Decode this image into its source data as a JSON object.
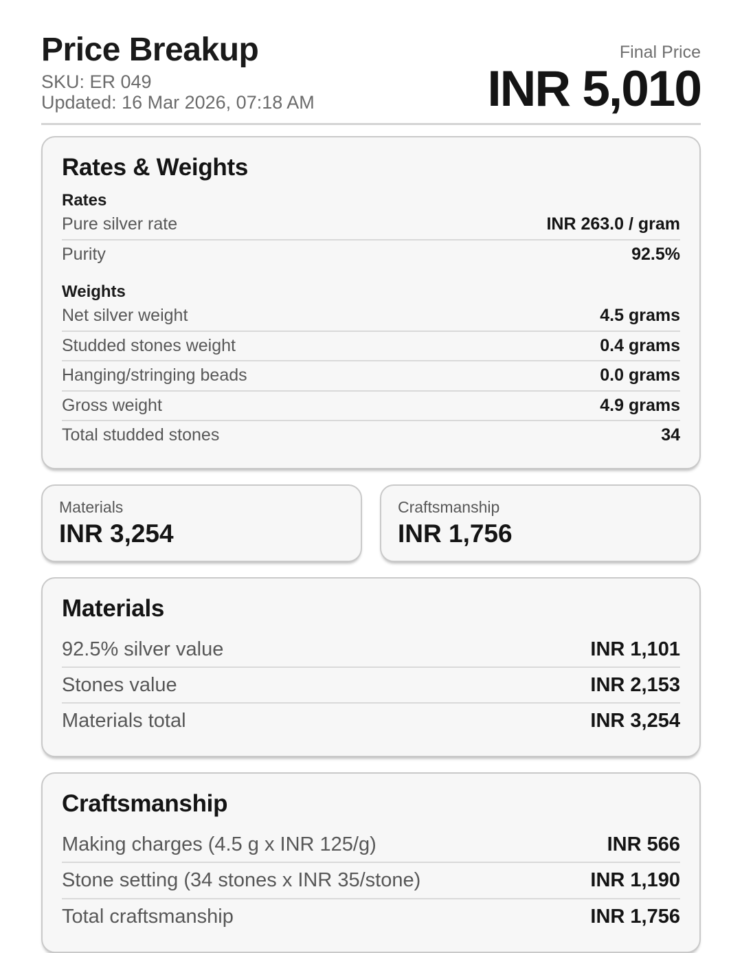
{
  "header": {
    "title": "Price Breakup",
    "sku": "SKU: ER 049",
    "updated": "Updated: 16 Mar 2026, 07:18 AM",
    "final_price_label": "Final Price",
    "final_price_value": "INR 5,010"
  },
  "rates_weights": {
    "title": "Rates & Weights",
    "rates": {
      "title": "Rates",
      "rows": [
        {
          "label": "Pure silver rate",
          "value": "INR 263.0 / gram"
        },
        {
          "label": "Purity",
          "value": "92.5%"
        }
      ]
    },
    "weights": {
      "title": "Weights",
      "rows": [
        {
          "label": "Net silver weight",
          "value": "4.5 grams"
        },
        {
          "label": "Studded stones weight",
          "value": "0.4 grams"
        },
        {
          "label": "Hanging/stringing beads",
          "value": "0.0 grams"
        },
        {
          "label": "Gross weight",
          "value": "4.9 grams"
        },
        {
          "label": "Total studded stones",
          "value": "34"
        }
      ]
    }
  },
  "summary_cards": [
    {
      "label": "Materials",
      "value": "INR 3,254"
    },
    {
      "label": "Craftsmanship",
      "value": "INR 1,756"
    }
  ],
  "materials": {
    "title": "Materials",
    "rows": [
      {
        "label": "92.5% silver value",
        "value": "INR 1,101"
      },
      {
        "label": "Stones value",
        "value": "INR 2,153"
      },
      {
        "label": "Materials total",
        "value": "INR 3,254"
      }
    ]
  },
  "craftsmanship": {
    "title": "Craftsmanship",
    "rows": [
      {
        "label": "Making charges (4.5 g x INR 125/g)",
        "value": "INR 566"
      },
      {
        "label": "Stone setting (34 stones x INR 35/stone)",
        "value": "INR 1,190"
      },
      {
        "label": "Total craftsmanship",
        "value": "INR 1,756"
      }
    ]
  },
  "colors": {
    "text_primary": "#141414",
    "text_muted": "#575757",
    "card_background": "#f7f7f7",
    "card_border": "#c9c9c9",
    "divider": "#d9d9d9"
  }
}
